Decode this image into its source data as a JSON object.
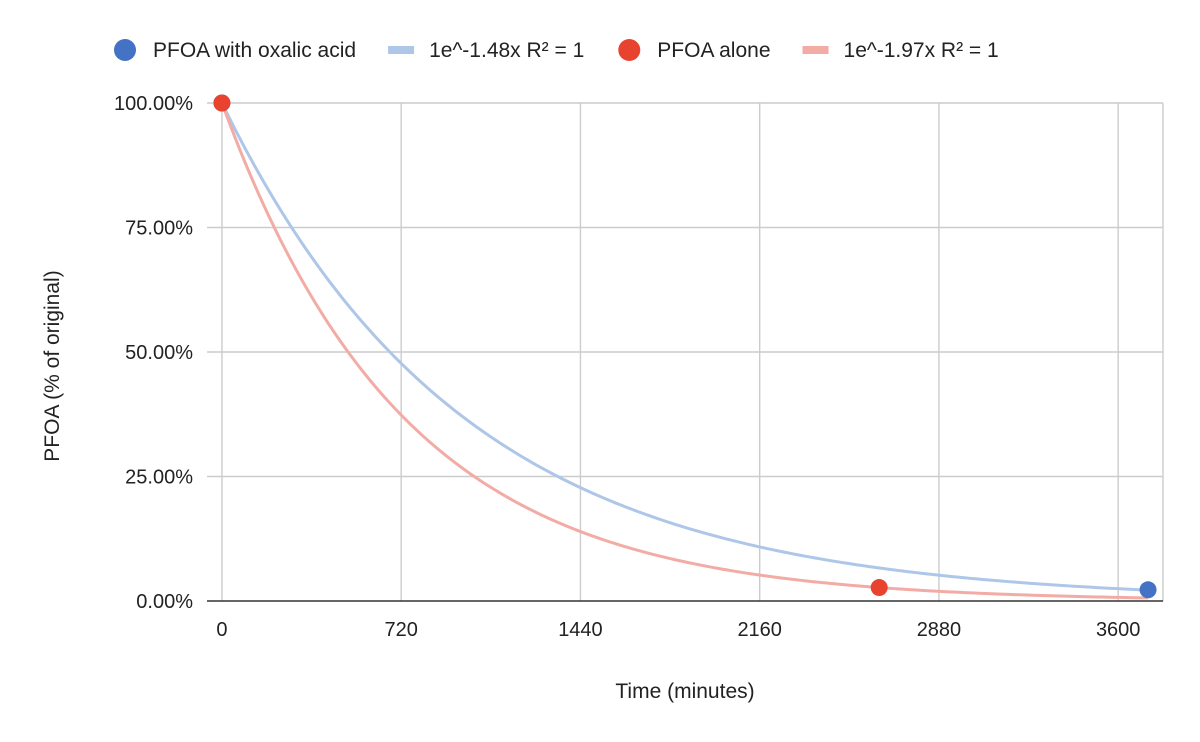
{
  "chart_data": {
    "type": "scatter",
    "title": "",
    "xlabel": "Time (minutes)",
    "ylabel": "PFOA (% of original)",
    "xlim": [
      -60,
      3780
    ],
    "ylim": [
      0,
      1
    ],
    "x_ticks": [
      0,
      720,
      1440,
      2160,
      2880,
      3600
    ],
    "x_tick_labels": [
      "0",
      "720",
      "1440",
      "2160",
      "2880",
      "3600"
    ],
    "y_ticks": [
      0,
      0.25,
      0.5,
      0.75,
      1.0
    ],
    "y_tick_labels": [
      "0.00%",
      "25.00%",
      "50.00%",
      "75.00%",
      "100.00%"
    ],
    "grid": true,
    "legend_position": "top",
    "series": [
      {
        "name": "PFOA with oxalic acid",
        "kind": "points",
        "color": "#4472c4",
        "points": [
          {
            "x": 0,
            "y": 1.0
          },
          {
            "x": 3720,
            "y": 0.0225
          }
        ]
      },
      {
        "name": "1e^-1.48x R² = 1",
        "kind": "trendline",
        "color": "#aec6e8",
        "equation": {
          "a": 1,
          "k": 1.48,
          "x_scale_minutes": 1440
        },
        "x_range": [
          0,
          3720
        ]
      },
      {
        "name": "PFOA alone",
        "kind": "points",
        "color": "#e8432f",
        "points": [
          {
            "x": 0,
            "y": 1.0
          },
          {
            "x": 2640,
            "y": 0.027
          }
        ]
      },
      {
        "name": "1e^-1.97x R² = 1",
        "kind": "trendline",
        "color": "#f2aca5",
        "equation": {
          "a": 1,
          "k": 1.97,
          "x_scale_minutes": 1440
        },
        "x_range": [
          0,
          3720
        ]
      }
    ]
  }
}
